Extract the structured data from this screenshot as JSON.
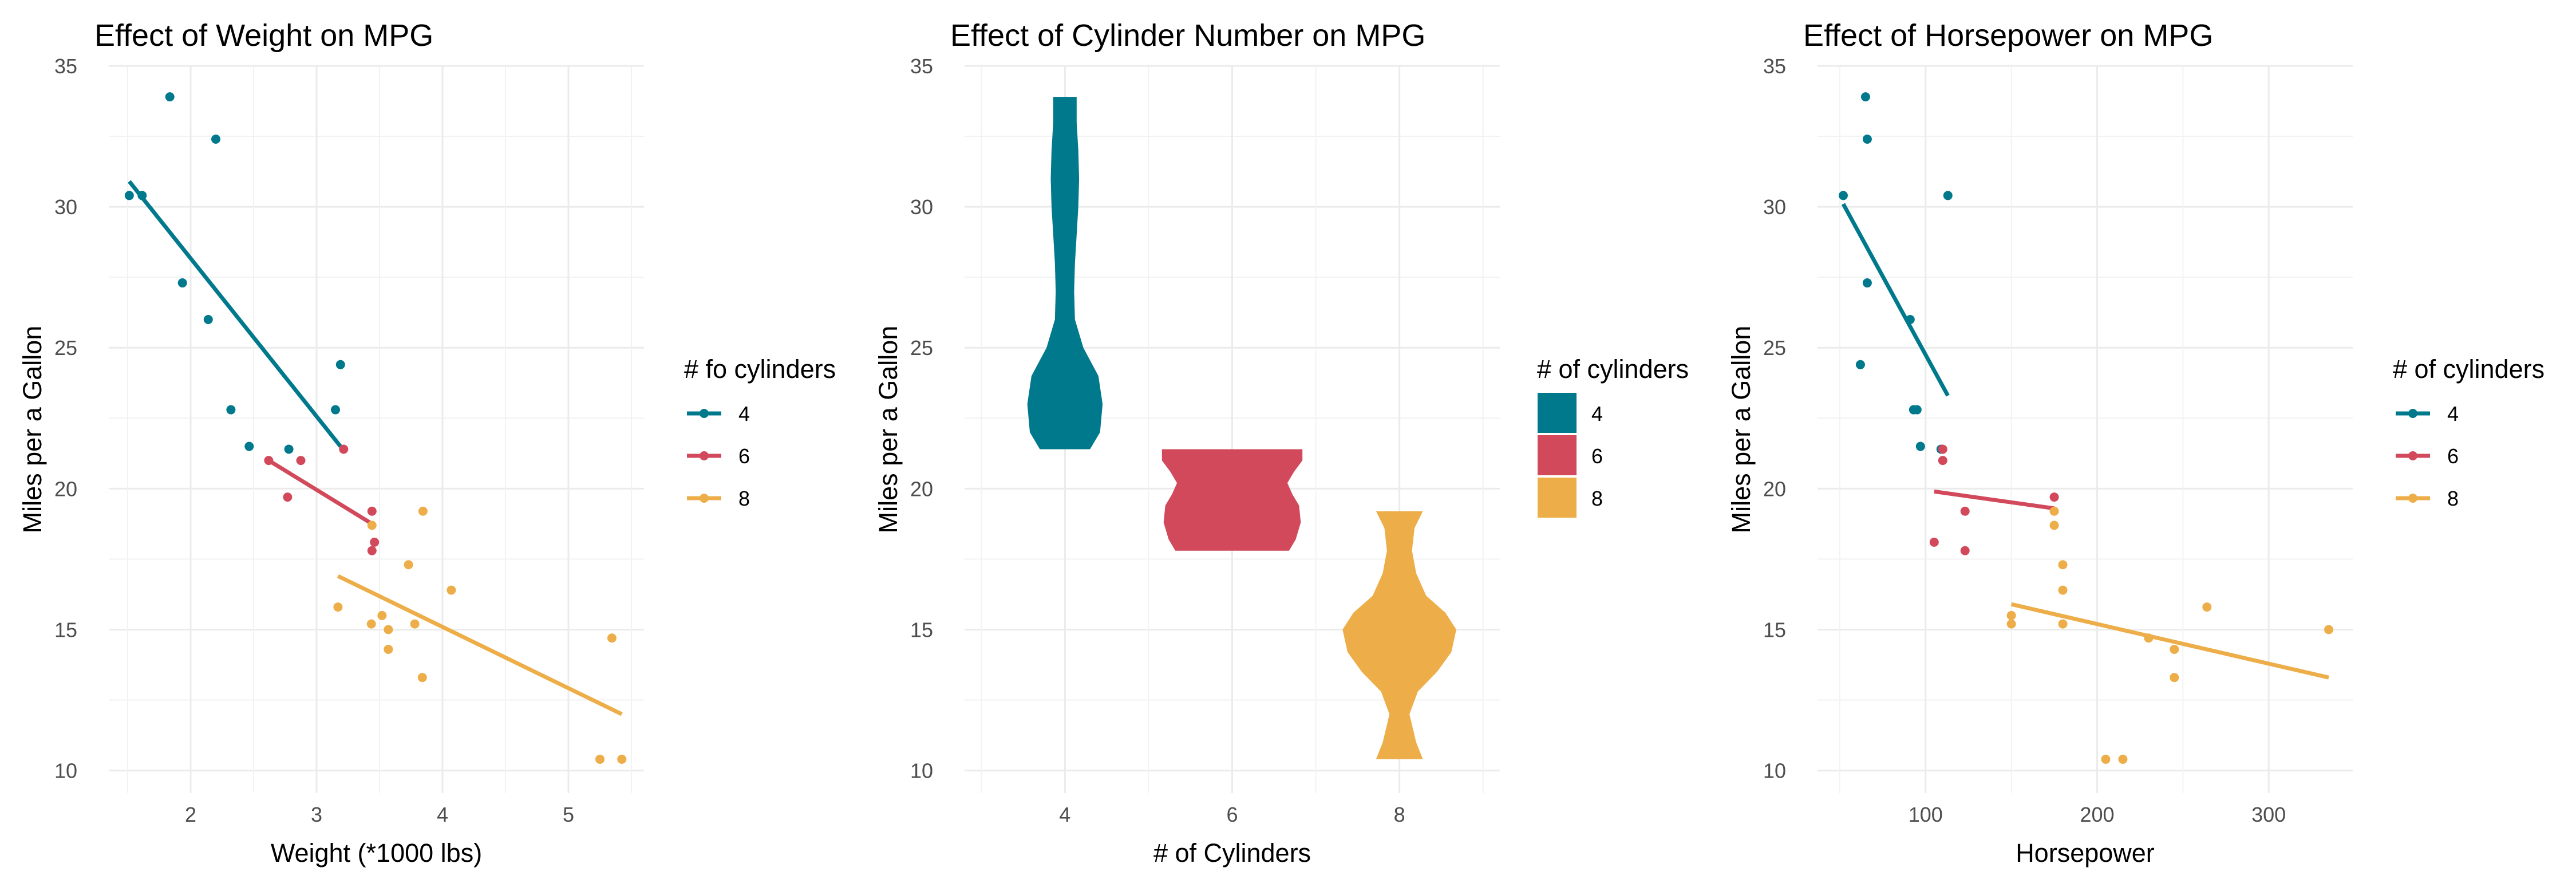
{
  "colors": {
    "4": "#00798C",
    "6": "#D1495B",
    "8": "#EDAE49"
  },
  "chart_data": [
    {
      "type": "scatter",
      "title": "Effect of Weight on MPG",
      "xlabel": "Weight (*1000 lbs)",
      "ylabel": "Miles per a Gallon",
      "xlim": [
        1.35,
        5.6
      ],
      "ylim": [
        9.2,
        35.0
      ],
      "xticks": [
        2,
        3,
        4,
        5
      ],
      "yticks": [
        10,
        15,
        20,
        25,
        30,
        35
      ],
      "legend": {
        "title": "# fo cylinders",
        "entries": [
          "4",
          "6",
          "8"
        ],
        "kind": "line-point"
      },
      "grid": true,
      "series": [
        {
          "name": "4",
          "points": [
            [
              1.513,
              30.4
            ],
            [
              1.615,
              30.4
            ],
            [
              1.835,
              33.9
            ],
            [
              1.935,
              27.3
            ],
            [
              2.14,
              26.0
            ],
            [
              2.2,
              32.4
            ],
            [
              2.32,
              22.8
            ],
            [
              2.465,
              21.5
            ],
            [
              2.78,
              21.4
            ],
            [
              3.15,
              22.8
            ],
            [
              3.19,
              24.4
            ]
          ],
          "fit": [
            [
              1.513,
              30.9
            ],
            [
              3.19,
              21.5
            ]
          ]
        },
        {
          "name": "6",
          "points": [
            [
              2.62,
              21.0
            ],
            [
              2.77,
              19.7
            ],
            [
              2.875,
              21.0
            ],
            [
              3.215,
              21.4
            ],
            [
              3.44,
              19.2
            ],
            [
              3.44,
              17.8
            ],
            [
              3.46,
              18.1
            ]
          ],
          "fit": [
            [
              2.62,
              21.0
            ],
            [
              3.46,
              18.7
            ]
          ]
        },
        {
          "name": "8",
          "points": [
            [
              3.17,
              15.8
            ],
            [
              3.435,
              15.2
            ],
            [
              3.44,
              18.7
            ],
            [
              3.52,
              15.5
            ],
            [
              3.57,
              14.3
            ],
            [
              3.57,
              15.0
            ],
            [
              3.73,
              17.3
            ],
            [
              3.78,
              15.2
            ],
            [
              3.84,
              13.3
            ],
            [
              3.845,
              19.2
            ],
            [
              4.07,
              16.4
            ],
            [
              5.25,
              10.4
            ],
            [
              5.345,
              14.7
            ],
            [
              5.424,
              10.4
            ]
          ],
          "fit": [
            [
              3.17,
              16.9
            ],
            [
              5.424,
              12.0
            ]
          ]
        }
      ]
    },
    {
      "type": "violin",
      "title": "Effect of Cylinder Number on MPG",
      "xlabel": "# of Cylinders",
      "ylabel": "Miles per a Gallon",
      "categories": [
        "4",
        "6",
        "8"
      ],
      "ylim": [
        9.2,
        35.0
      ],
      "yticks": [
        10,
        15,
        20,
        25,
        30,
        35
      ],
      "legend": {
        "title": "# of cylinders",
        "entries": [
          "4",
          "6",
          "8"
        ],
        "kind": "fill"
      },
      "grid": true,
      "violins": [
        {
          "name": "4",
          "y": [
            21.4,
            22.0,
            23.0,
            24.0,
            25.0,
            26.0,
            27.0,
            28.0,
            29.0,
            30.0,
            31.0,
            32.0,
            33.0,
            33.9
          ],
          "w": [
            0.3,
            0.42,
            0.45,
            0.4,
            0.22,
            0.12,
            0.11,
            0.12,
            0.14,
            0.16,
            0.17,
            0.16,
            0.14,
            0.14
          ]
        },
        {
          "name": "6",
          "y": [
            17.8,
            18.2,
            18.8,
            19.4,
            19.8,
            20.2,
            20.6,
            21.0,
            21.4
          ],
          "w": [
            0.68,
            0.76,
            0.82,
            0.8,
            0.72,
            0.66,
            0.74,
            0.84,
            0.84
          ]
        },
        {
          "name": "8",
          "y": [
            10.4,
            11.0,
            12.0,
            12.8,
            13.5,
            14.2,
            15.0,
            15.6,
            16.2,
            17.0,
            17.8,
            18.6,
            19.2
          ],
          "w": [
            0.28,
            0.2,
            0.12,
            0.22,
            0.45,
            0.62,
            0.68,
            0.55,
            0.32,
            0.2,
            0.15,
            0.18,
            0.28
          ]
        }
      ]
    },
    {
      "type": "scatter",
      "title": "Effect of Horsepower on MPG",
      "xlabel": "Horsepower",
      "ylabel": "Miles per a Gallon",
      "xlim": [
        37,
        349
      ],
      "ylim": [
        9.2,
        35.0
      ],
      "xticks": [
        100,
        200,
        300
      ],
      "yticks": [
        10,
        15,
        20,
        25,
        30,
        35
      ],
      "legend": {
        "title": "# of cylinders",
        "entries": [
          "4",
          "6",
          "8"
        ],
        "kind": "line-point"
      },
      "grid": true,
      "series": [
        {
          "name": "4",
          "points": [
            [
              52,
              30.4
            ],
            [
              62,
              24.4
            ],
            [
              65,
              33.9
            ],
            [
              66,
              32.4
            ],
            [
              66,
              27.3
            ],
            [
              91,
              26.0
            ],
            [
              93,
              22.8
            ],
            [
              95,
              22.8
            ],
            [
              97,
              21.5
            ],
            [
              109,
              21.4
            ],
            [
              113,
              30.4
            ]
          ],
          "fit": [
            [
              52,
              30.1
            ],
            [
              113,
              23.3
            ]
          ]
        },
        {
          "name": "6",
          "points": [
            [
              105,
              18.1
            ],
            [
              110,
              21.0
            ],
            [
              110,
              21.4
            ],
            [
              123,
              19.2
            ],
            [
              123,
              17.8
            ],
            [
              175,
              19.7
            ]
          ],
          "fit": [
            [
              105,
              19.9
            ],
            [
              175,
              19.3
            ]
          ]
        },
        {
          "name": "8",
          "points": [
            [
              150,
              15.5
            ],
            [
              150,
              15.2
            ],
            [
              175,
              19.2
            ],
            [
              175,
              18.7
            ],
            [
              180,
              16.4
            ],
            [
              180,
              17.3
            ],
            [
              180,
              15.2
            ],
            [
              205,
              10.4
            ],
            [
              215,
              10.4
            ],
            [
              230,
              14.7
            ],
            [
              245,
              13.3
            ],
            [
              245,
              14.3
            ],
            [
              264,
              15.8
            ],
            [
              335,
              15.0
            ]
          ],
          "fit": [
            [
              150,
              15.9
            ],
            [
              335,
              13.3
            ]
          ]
        }
      ]
    }
  ]
}
